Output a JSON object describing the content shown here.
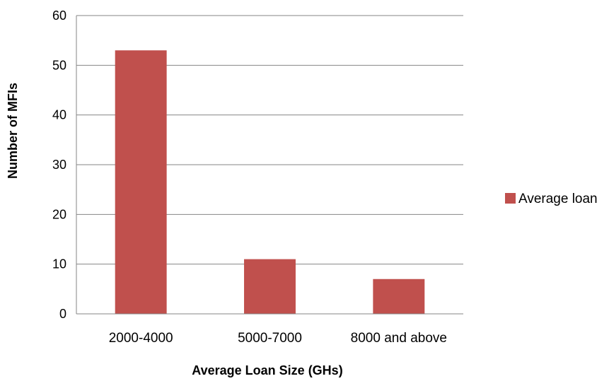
{
  "chart_data": {
    "type": "bar",
    "title": "",
    "xlabel": "Average Loan Size (GHs)",
    "ylabel": "Number of MFIs",
    "categories": [
      "2000-4000",
      "5000-7000",
      "8000 and above"
    ],
    "series": [
      {
        "name": "Average loan",
        "values": [
          53,
          11,
          7
        ],
        "color": "#c0504d"
      }
    ],
    "ylim": [
      0,
      60
    ],
    "yticks": [
      0,
      10,
      20,
      30,
      40,
      50,
      60
    ],
    "grid": true,
    "legend": "right"
  }
}
